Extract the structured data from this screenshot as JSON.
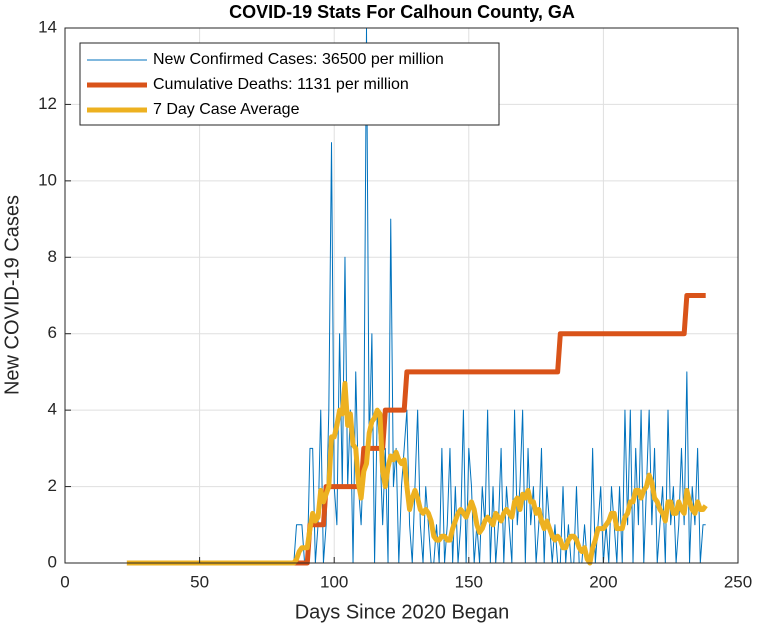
{
  "chart_data": {
    "type": "line",
    "title": "COVID-19 Stats For Calhoun County, GA",
    "xlabel": "Days Since 2020 Began",
    "ylabel": "New COVID-19 Cases",
    "xlim": [
      0,
      250
    ],
    "xticks": [
      0,
      50,
      100,
      150,
      200,
      250
    ],
    "ylim": [
      0,
      14
    ],
    "yticks": [
      0,
      2,
      4,
      6,
      8,
      10,
      12,
      14
    ],
    "grid": true,
    "legend": "upper left",
    "x": [
      23,
      24,
      25,
      26,
      27,
      28,
      29,
      30,
      31,
      32,
      33,
      34,
      35,
      36,
      37,
      38,
      39,
      40,
      41,
      42,
      43,
      44,
      45,
      46,
      47,
      48,
      49,
      50,
      51,
      52,
      53,
      54,
      55,
      56,
      57,
      58,
      59,
      60,
      61,
      62,
      63,
      64,
      65,
      66,
      67,
      68,
      69,
      70,
      71,
      72,
      73,
      74,
      75,
      76,
      77,
      78,
      79,
      80,
      81,
      82,
      83,
      84,
      85,
      86,
      87,
      88,
      89,
      90,
      91,
      92,
      93,
      94,
      95,
      96,
      97,
      98,
      99,
      100,
      101,
      102,
      103,
      104,
      105,
      106,
      107,
      108,
      109,
      110,
      111,
      112,
      113,
      114,
      115,
      116,
      117,
      118,
      119,
      120,
      121,
      122,
      123,
      124,
      125,
      126,
      127,
      128,
      129,
      130,
      131,
      132,
      133,
      134,
      135,
      136,
      137,
      138,
      139,
      140,
      141,
      142,
      143,
      144,
      145,
      146,
      147,
      148,
      149,
      150,
      151,
      152,
      153,
      154,
      155,
      156,
      157,
      158,
      159,
      160,
      161,
      162,
      163,
      164,
      165,
      166,
      167,
      168,
      169,
      170,
      171,
      172,
      173,
      174,
      175,
      176,
      177,
      178,
      179,
      180,
      181,
      182,
      183,
      184,
      185,
      186,
      187,
      188,
      189,
      190,
      191,
      192,
      193,
      194,
      195,
      196,
      197,
      198,
      199,
      200,
      201,
      202,
      203,
      204,
      205,
      206,
      207,
      208,
      209,
      210,
      211,
      212,
      213,
      214,
      215,
      216,
      217,
      218,
      219,
      220,
      221,
      222,
      223,
      224,
      225,
      226,
      227,
      228,
      229,
      230,
      231,
      232,
      233,
      234,
      235,
      236,
      237,
      238
    ],
    "series": [
      {
        "name": "New Confirmed Cases: 36500 per million",
        "color": "#0072BD",
        "width": 1,
        "values": [
          0,
          0,
          0,
          0,
          0,
          0,
          0,
          0,
          0,
          0,
          0,
          0,
          0,
          0,
          0,
          0,
          0,
          0,
          0,
          0,
          0,
          0,
          0,
          0,
          0,
          0,
          0,
          0,
          0,
          0,
          0,
          0,
          0,
          0,
          0,
          0,
          0,
          0,
          0,
          0,
          0,
          0,
          0,
          0,
          0,
          0,
          0,
          0,
          0,
          0,
          0,
          0,
          0,
          0,
          0,
          0,
          0,
          0,
          0,
          0,
          0,
          0,
          0,
          1,
          1,
          1,
          0,
          0,
          3,
          3,
          0,
          1,
          4,
          0,
          1,
          4,
          11,
          2,
          1,
          6,
          2,
          8,
          2,
          4,
          0,
          5,
          2,
          1,
          3,
          14,
          3,
          6,
          0,
          4,
          3,
          1,
          3,
          0,
          9,
          2,
          3,
          0,
          2,
          3,
          4,
          1,
          0,
          2,
          4,
          1,
          0,
          2,
          1,
          0,
          0,
          1,
          0,
          3,
          0,
          1,
          3,
          0,
          2,
          0,
          1,
          4,
          0,
          3,
          2,
          0,
          1,
          0,
          2,
          1,
          4,
          0,
          2,
          0,
          1,
          3,
          0,
          2,
          1,
          0,
          4,
          1,
          2,
          4,
          0,
          3,
          1,
          2,
          0,
          1,
          3,
          0,
          2,
          1,
          0,
          1,
          0,
          0,
          2,
          0,
          1,
          0,
          0,
          2,
          0,
          0,
          1,
          0,
          0,
          3,
          0,
          1,
          2,
          0,
          1,
          0,
          2,
          1,
          0,
          2,
          0,
          4,
          1,
          4,
          0,
          3,
          1,
          4,
          0,
          2,
          4,
          1,
          3,
          0,
          1,
          2,
          0,
          4,
          1,
          2,
          0,
          1,
          3,
          1,
          5,
          0,
          2,
          1,
          3,
          0,
          1,
          1
        ]
      },
      {
        "name": "Cumulative Deaths: 1131 per million",
        "color": "#D95319",
        "width": 5,
        "values": [
          0,
          0,
          0,
          0,
          0,
          0,
          0,
          0,
          0,
          0,
          0,
          0,
          0,
          0,
          0,
          0,
          0,
          0,
          0,
          0,
          0,
          0,
          0,
          0,
          0,
          0,
          0,
          0,
          0,
          0,
          0,
          0,
          0,
          0,
          0,
          0,
          0,
          0,
          0,
          0,
          0,
          0,
          0,
          0,
          0,
          0,
          0,
          0,
          0,
          0,
          0,
          0,
          0,
          0,
          0,
          0,
          0,
          0,
          0,
          0,
          0,
          0,
          0,
          0,
          0,
          0,
          0,
          0,
          1,
          1,
          1,
          1,
          1,
          1,
          2,
          2,
          2,
          2,
          2,
          2,
          2,
          2,
          2,
          2,
          2,
          2,
          2,
          2,
          3,
          3,
          3,
          3,
          3,
          3,
          3,
          3,
          4,
          4,
          4,
          4,
          4,
          4,
          4,
          4,
          5,
          5,
          5,
          5,
          5,
          5,
          5,
          5,
          5,
          5,
          5,
          5,
          5,
          5,
          5,
          5,
          5,
          5,
          5,
          5,
          5,
          5,
          5,
          5,
          5,
          5,
          5,
          5,
          5,
          5,
          5,
          5,
          5,
          5,
          5,
          5,
          5,
          5,
          5,
          5,
          5,
          5,
          5,
          5,
          5,
          5,
          5,
          5,
          5,
          5,
          5,
          5,
          5,
          5,
          5,
          5,
          5,
          6,
          6,
          6,
          6,
          6,
          6,
          6,
          6,
          6,
          6,
          6,
          6,
          6,
          6,
          6,
          6,
          6,
          6,
          6,
          6,
          6,
          6,
          6,
          6,
          6,
          6,
          6,
          6,
          6,
          6,
          6,
          6,
          6,
          6,
          6,
          6,
          6,
          6,
          6,
          6,
          6,
          6,
          6,
          6,
          6,
          6,
          6,
          7,
          7,
          7,
          7,
          7,
          7,
          7,
          7
        ]
      },
      {
        "name": "7 Day Case Average",
        "color": "#EDB120",
        "width": 5,
        "values": [
          0,
          0,
          0,
          0,
          0,
          0,
          0,
          0,
          0,
          0,
          0,
          0,
          0,
          0,
          0,
          0,
          0,
          0,
          0,
          0,
          0,
          0,
          0,
          0,
          0,
          0,
          0,
          0,
          0,
          0,
          0,
          0,
          0,
          0,
          0,
          0,
          0,
          0,
          0,
          0,
          0,
          0,
          0,
          0,
          0,
          0,
          0,
          0,
          0,
          0,
          0,
          0,
          0,
          0,
          0,
          0,
          0,
          0,
          0,
          0,
          0,
          0,
          0,
          0.1,
          0.3,
          0.4,
          0.4,
          0.4,
          0.9,
          1.3,
          1.1,
          1.2,
          1.9,
          1.6,
          1.8,
          2.0,
          3.3,
          3.3,
          3.6,
          4.0,
          3.9,
          4.7,
          3.6,
          3.9,
          3.1,
          3.0,
          2.1,
          1.7,
          2.4,
          2.6,
          3.4,
          3.7,
          3.8,
          4.0,
          3.9,
          2.4,
          2.0,
          2.5,
          2.8,
          2.7,
          2.9,
          2.7,
          2.6,
          2.7,
          2.0,
          1.4,
          1.7,
          1.9,
          1.7,
          1.4,
          1.3,
          1.4,
          1.3,
          1.1,
          0.7,
          0.6,
          0.6,
          0.7,
          0.7,
          0.6,
          0.6,
          0.9,
          1.1,
          1.3,
          1.4,
          1.3,
          1.2,
          1.4,
          1.6,
          1.4,
          1.0,
          0.8,
          0.9,
          1.1,
          1.2,
          1.1,
          1.0,
          1.3,
          1.2,
          1.1,
          1.3,
          1.4,
          1.3,
          1.2,
          1.6,
          1.7,
          1.4,
          1.8,
          1.7,
          1.9,
          1.6,
          1.6,
          1.3,
          1.4,
          1.1,
          0.9,
          1.1,
          0.9,
          0.7,
          0.6,
          0.7,
          0.6,
          0.4,
          0.4,
          0.6,
          0.7,
          0.7,
          0.6,
          0.4,
          0.3,
          0.4,
          0.1,
          0,
          0.4,
          0.6,
          0.9,
          0.9,
          0.9,
          1.0,
          1.1,
          1.3,
          1.3,
          0.9,
          0.9,
          0.9,
          1.2,
          1.3,
          1.6,
          1.6,
          1.9,
          1.9,
          1.7,
          1.9,
          2.0,
          2.3,
          2.1,
          1.7,
          1.6,
          1.4,
          1.3,
          1.1,
          1.6,
          1.6,
          1.3,
          1.3,
          1.6,
          1.4,
          1.3,
          1.9,
          1.6,
          1.4,
          1.3,
          1.6,
          1.4,
          1.4,
          1.5
        ]
      }
    ]
  }
}
